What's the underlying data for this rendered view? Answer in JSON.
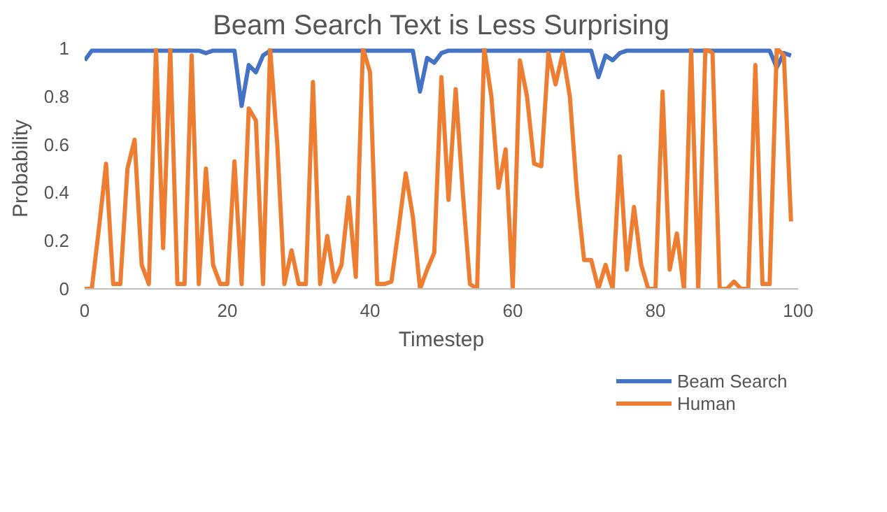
{
  "chart_data": {
    "type": "line",
    "title": "Beam Search Text is Less Surprising",
    "xlabel": "Timestep",
    "ylabel": "Probability",
    "x": [
      0,
      1,
      2,
      3,
      4,
      5,
      6,
      7,
      8,
      9,
      10,
      11,
      12,
      13,
      14,
      15,
      16,
      17,
      18,
      19,
      20,
      21,
      22,
      23,
      24,
      25,
      26,
      27,
      28,
      29,
      30,
      31,
      32,
      33,
      34,
      35,
      36,
      37,
      38,
      39,
      40,
      41,
      42,
      43,
      44,
      45,
      46,
      47,
      48,
      49,
      50,
      51,
      52,
      53,
      54,
      55,
      56,
      57,
      58,
      59,
      60,
      61,
      62,
      63,
      64,
      65,
      66,
      67,
      68,
      69,
      70,
      71,
      72,
      73,
      74,
      75,
      76,
      77,
      78,
      79,
      80,
      81,
      82,
      83,
      84,
      85,
      86,
      87,
      88,
      89,
      90,
      91,
      92,
      93,
      94,
      95,
      96,
      97,
      98,
      99
    ],
    "series": [
      {
        "name": "Beam Search",
        "color": "#4472c4",
        "values": [
          0.95,
          0.99,
          0.99,
          0.99,
          0.99,
          0.99,
          0.99,
          0.99,
          0.99,
          0.99,
          0.99,
          0.99,
          0.99,
          0.99,
          0.99,
          0.99,
          0.99,
          0.98,
          0.99,
          0.99,
          0.99,
          0.99,
          0.76,
          0.93,
          0.9,
          0.97,
          0.99,
          0.99,
          0.99,
          0.99,
          0.99,
          0.99,
          0.99,
          0.99,
          0.99,
          0.99,
          0.99,
          0.99,
          0.99,
          0.99,
          0.99,
          0.99,
          0.99,
          0.99,
          0.99,
          0.99,
          0.99,
          0.82,
          0.96,
          0.94,
          0.98,
          0.99,
          0.99,
          0.99,
          0.99,
          0.99,
          0.99,
          0.99,
          0.99,
          0.99,
          0.99,
          0.99,
          0.99,
          0.99,
          0.99,
          0.99,
          0.99,
          0.99,
          0.99,
          0.99,
          0.99,
          0.99,
          0.88,
          0.97,
          0.95,
          0.98,
          0.99,
          0.99,
          0.99,
          0.99,
          0.99,
          0.99,
          0.99,
          0.99,
          0.99,
          0.99,
          0.99,
          0.99,
          0.99,
          0.99,
          0.99,
          0.99,
          0.99,
          0.99,
          0.99,
          0.99,
          0.99,
          0.92,
          0.98,
          0.97
        ]
      },
      {
        "name": "Human",
        "color": "#ed7d31",
        "values": [
          0,
          0,
          0.25,
          0.52,
          0.02,
          0.02,
          0.5,
          0.62,
          0.1,
          0.02,
          1.0,
          0.17,
          1.0,
          0.02,
          0.02,
          0.97,
          0.02,
          0.5,
          0.1,
          0.02,
          0.02,
          0.53,
          0.02,
          0.75,
          0.7,
          0.02,
          1.0,
          0.6,
          0.02,
          0.16,
          0.02,
          0.02,
          0.86,
          0.02,
          0.22,
          0.03,
          0.1,
          0.38,
          0.05,
          1.0,
          0.9,
          0.02,
          0.02,
          0.03,
          0.25,
          0.48,
          0.3,
          0.0,
          0.08,
          0.15,
          0.88,
          0.37,
          0.83,
          0.4,
          0.02,
          0.0,
          1.0,
          0.8,
          0.42,
          0.58,
          0.0,
          0.95,
          0.8,
          0.52,
          0.51,
          0.98,
          0.85,
          0.98,
          0.8,
          0.4,
          0.12,
          0.12,
          0.0,
          0.1,
          0.0,
          0.55,
          0.08,
          0.34,
          0.1,
          0.0,
          0.0,
          0.82,
          0.08,
          0.23,
          0.0,
          1.0,
          0.0,
          1.0,
          0.98,
          0.0,
          0.0,
          0.03,
          0.0,
          0.0,
          0.93,
          0.02,
          0.02,
          1.0,
          0.97,
          0.28
        ]
      }
    ],
    "xlim": [
      0,
      100
    ],
    "ylim": [
      0,
      1
    ],
    "xticks": [
      0,
      20,
      40,
      60,
      80,
      100
    ],
    "yticks": [
      0,
      {
        "value": 0.2,
        "label": "0.2"
      },
      {
        "value": 0.4,
        "label": "0.4"
      },
      {
        "value": 0.6,
        "label": "0.6"
      },
      {
        "value": 0.8,
        "label": "0.8"
      },
      1
    ],
    "grid": false,
    "legend": "bottom right",
    "line_style": "solid"
  }
}
